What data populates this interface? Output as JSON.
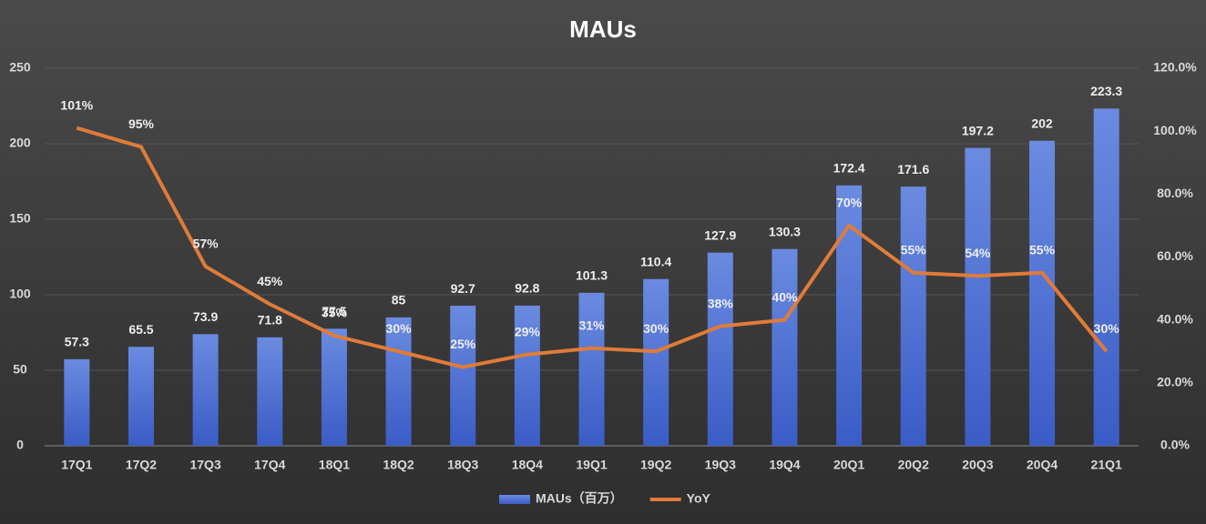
{
  "chart_data": {
    "type": "bar",
    "title": "MAUs",
    "categories": [
      "17Q1",
      "17Q2",
      "17Q3",
      "17Q4",
      "18Q1",
      "18Q2",
      "18Q3",
      "18Q4",
      "19Q1",
      "19Q2",
      "19Q3",
      "19Q4",
      "20Q1",
      "20Q2",
      "20Q3",
      "20Q4",
      "21Q1"
    ],
    "series": [
      {
        "name": "MAUs（百万）",
        "type": "bar",
        "color": "#4a6fd0",
        "values": [
          57.3,
          65.5,
          73.9,
          71.8,
          77.5,
          85,
          92.7,
          92.8,
          101.3,
          110.4,
          127.9,
          130.3,
          172.4,
          171.6,
          197.2,
          202,
          223.3
        ]
      },
      {
        "name": "YoY",
        "type": "line",
        "axis": "y2",
        "color": "#e07b39",
        "values": [
          101,
          95,
          57,
          45,
          35,
          30,
          25,
          29,
          31,
          30,
          38,
          40,
          70,
          55,
          54,
          55,
          30
        ],
        "value_labels": [
          "101%",
          "95%",
          "57%",
          "45%",
          "35%",
          "30%",
          "25%",
          "29%",
          "31%",
          "30%",
          "38%",
          "40%",
          "70%",
          "55%",
          "54%",
          "55%",
          "30%"
        ]
      }
    ],
    "ylim": [
      0,
      250
    ],
    "yticks": [
      0,
      50,
      100,
      150,
      200,
      250
    ],
    "y2lim": [
      0,
      120
    ],
    "y2ticks": [
      {
        "value": 0,
        "label": "0.0%"
      },
      {
        "value": 20,
        "label": "20.0%"
      },
      {
        "value": 40,
        "label": "40.0%"
      },
      {
        "value": 60,
        "label": "60.0%"
      },
      {
        "value": 80,
        "label": "80.0%"
      },
      {
        "value": 100,
        "label": "100.0%"
      },
      {
        "value": 120,
        "label": "120.0%"
      }
    ],
    "grid": true,
    "legend": "bottom"
  }
}
